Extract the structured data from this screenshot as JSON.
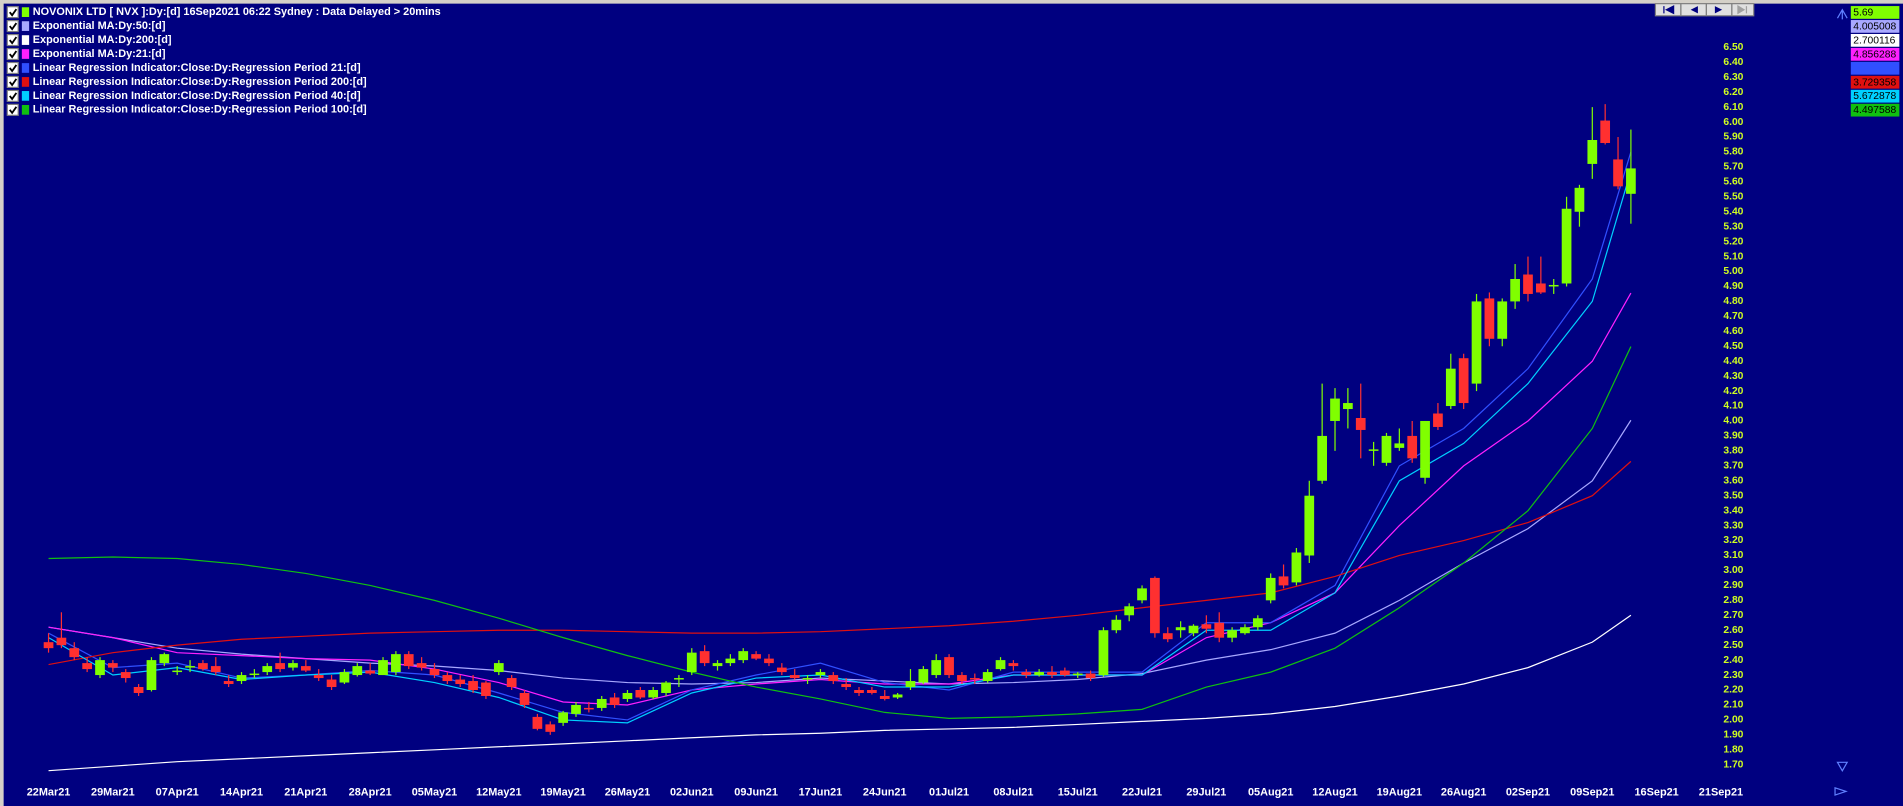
{
  "chart_data": {
    "type": "candlestick",
    "title": "NOVONIX LTD [ NVX ]:Dy:[d]  16Sep2021 06:22 Sydney : Data Delayed > 20mins",
    "up_color": "#80ff00",
    "down_color": "#ff3030",
    "categories": [
      "22Mar21",
      null,
      null,
      null,
      null,
      "29Mar21",
      null,
      null,
      null,
      null,
      "07Apr21",
      null,
      null,
      null,
      null,
      "14Apr21",
      null,
      null,
      null,
      null,
      "21Apr21",
      null,
      null,
      null,
      null,
      "28Apr21",
      null,
      null,
      null,
      null,
      "05May21",
      null,
      null,
      null,
      null,
      "12May21",
      null,
      null,
      null,
      null,
      "19May21",
      null,
      null,
      null,
      null,
      "26May21",
      null,
      null,
      null,
      null,
      "02Jun21",
      null,
      null,
      null,
      null,
      "09Jun21",
      null,
      null,
      null,
      null,
      "17Jun21",
      null,
      null,
      null,
      null,
      "24Jun21",
      null,
      null,
      null,
      null,
      "01Jul21",
      null,
      null,
      null,
      null,
      "08Jul21",
      null,
      null,
      null,
      null,
      "15Jul21",
      null,
      null,
      null,
      null,
      "22Jul21",
      null,
      null,
      null,
      null,
      "29Jul21",
      null,
      null,
      null,
      null,
      "05Aug21",
      null,
      null,
      null,
      null,
      "12Aug21",
      null,
      null,
      null,
      null,
      "19Aug21",
      null,
      null,
      null,
      null,
      "26Aug21",
      null,
      null,
      null,
      null,
      "02Sep21",
      null,
      null,
      null,
      null,
      "09Sep21",
      null,
      null,
      null,
      null,
      "16Sep21",
      null,
      null,
      null,
      null,
      "21Sep21"
    ],
    "open": [
      2.52,
      2.55,
      2.48,
      2.38,
      2.3,
      2.38,
      2.32,
      2.22,
      2.2,
      2.38,
      2.32,
      2.35,
      2.38,
      2.36,
      2.26,
      2.26,
      2.3,
      2.32,
      2.38,
      2.35,
      2.36,
      2.3,
      2.27,
      2.25,
      2.3,
      2.33,
      2.3,
      2.32,
      2.44,
      2.38,
      2.34,
      2.3,
      2.27,
      2.26,
      2.25,
      2.32,
      2.28,
      2.18,
      2.02,
      1.97,
      1.98,
      2.04,
      2.08,
      2.08,
      2.15,
      2.14,
      2.2,
      2.15,
      2.18,
      2.27,
      2.32,
      2.46,
      2.36,
      2.38,
      2.4,
      2.44,
      2.41,
      2.35,
      2.3,
      2.27,
      2.3,
      2.3,
      2.24,
      2.2,
      2.2,
      2.16,
      2.15,
      2.22,
      2.25,
      2.3,
      2.42,
      2.3,
      2.28,
      2.26,
      2.34,
      2.38,
      2.32,
      2.3,
      2.32,
      2.33,
      2.3,
      2.31,
      2.3,
      2.6,
      2.7,
      2.8,
      2.95,
      2.58,
      2.6,
      2.58,
      2.64,
      2.65,
      2.55,
      2.58,
      2.62,
      2.8,
      2.96,
      2.92,
      3.1,
      3.6,
      4.0,
      4.08,
      4.02,
      3.8,
      3.72,
      3.82,
      3.9,
      3.62,
      4.05,
      4.1,
      4.42,
      4.25,
      4.82,
      4.55,
      4.8,
      4.98,
      4.92,
      4.9,
      4.92,
      5.4,
      5.72,
      6.01,
      5.75,
      5.52,
      null,
      null,
      null,
      null,
      null,
      null,
      null
    ],
    "high": [
      2.58,
      2.72,
      2.52,
      2.42,
      2.42,
      2.4,
      2.34,
      2.24,
      2.42,
      2.45,
      2.36,
      2.4,
      2.4,
      2.42,
      2.3,
      2.32,
      2.34,
      2.38,
      2.45,
      2.4,
      2.4,
      2.34,
      2.3,
      2.34,
      2.38,
      2.38,
      2.42,
      2.46,
      2.46,
      2.42,
      2.38,
      2.32,
      2.3,
      2.3,
      2.26,
      2.4,
      2.3,
      2.2,
      2.04,
      1.99,
      2.06,
      2.12,
      2.12,
      2.16,
      2.18,
      2.2,
      2.22,
      2.22,
      2.26,
      2.3,
      2.48,
      2.5,
      2.4,
      2.44,
      2.48,
      2.46,
      2.44,
      2.38,
      2.34,
      2.3,
      2.34,
      2.32,
      2.28,
      2.22,
      2.22,
      2.2,
      2.18,
      2.34,
      2.36,
      2.44,
      2.44,
      2.32,
      2.31,
      2.34,
      2.42,
      2.4,
      2.34,
      2.34,
      2.36,
      2.35,
      2.32,
      2.33,
      2.62,
      2.7,
      2.78,
      2.9,
      2.96,
      2.62,
      2.66,
      2.64,
      2.7,
      2.72,
      2.62,
      2.64,
      2.7,
      2.98,
      3.04,
      3.15,
      3.6,
      4.25,
      4.22,
      4.22,
      4.25,
      3.86,
      3.92,
      3.95,
      4.0,
      4.0,
      4.12,
      4.45,
      4.45,
      4.85,
      4.86,
      4.82,
      5.05,
      5.1,
      5.1,
      4.95,
      5.5,
      5.58,
      6.1,
      6.12,
      5.9,
      5.95,
      null,
      null,
      null,
      null,
      null,
      null,
      null
    ],
    "low": [
      2.45,
      2.48,
      2.4,
      2.32,
      2.28,
      2.32,
      2.25,
      2.16,
      2.19,
      2.36,
      2.3,
      2.32,
      2.33,
      2.3,
      2.22,
      2.24,
      2.28,
      2.3,
      2.32,
      2.33,
      2.32,
      2.26,
      2.2,
      2.24,
      2.29,
      2.3,
      2.3,
      2.3,
      2.34,
      2.33,
      2.28,
      2.24,
      2.22,
      2.18,
      2.14,
      2.3,
      2.2,
      2.08,
      1.93,
      1.9,
      1.96,
      2.02,
      2.05,
      2.06,
      2.08,
      2.12,
      2.14,
      2.14,
      2.16,
      2.22,
      2.3,
      2.36,
      2.33,
      2.36,
      2.38,
      2.4,
      2.36,
      2.3,
      2.27,
      2.24,
      2.28,
      2.24,
      2.2,
      2.16,
      2.17,
      2.13,
      2.14,
      2.2,
      2.24,
      2.28,
      2.28,
      2.24,
      2.24,
      2.25,
      2.33,
      2.33,
      2.28,
      2.29,
      2.28,
      2.29,
      2.28,
      2.26,
      2.29,
      2.58,
      2.66,
      2.78,
      2.55,
      2.52,
      2.55,
      2.56,
      2.58,
      2.52,
      2.52,
      2.57,
      2.6,
      2.78,
      2.88,
      2.9,
      3.05,
      3.58,
      3.8,
      3.95,
      3.75,
      3.7,
      3.7,
      3.8,
      3.72,
      3.58,
      3.94,
      4.08,
      4.08,
      4.2,
      4.5,
      4.5,
      4.75,
      4.8,
      4.85,
      4.85,
      4.9,
      5.3,
      5.62,
      5.85,
      5.55,
      5.32,
      null,
      null,
      null,
      null,
      null,
      null,
      null
    ],
    "close": [
      2.48,
      2.5,
      2.42,
      2.34,
      2.4,
      2.35,
      2.28,
      2.18,
      2.4,
      2.44,
      2.33,
      2.36,
      2.34,
      2.32,
      2.24,
      2.3,
      2.31,
      2.36,
      2.34,
      2.38,
      2.33,
      2.28,
      2.22,
      2.32,
      2.36,
      2.31,
      2.4,
      2.44,
      2.36,
      2.35,
      2.3,
      2.26,
      2.24,
      2.2,
      2.16,
      2.38,
      2.22,
      2.1,
      1.94,
      1.92,
      2.05,
      2.1,
      2.07,
      2.14,
      2.1,
      2.18,
      2.15,
      2.2,
      2.25,
      2.28,
      2.45,
      2.38,
      2.38,
      2.41,
      2.46,
      2.41,
      2.38,
      2.32,
      2.28,
      2.28,
      2.32,
      2.26,
      2.22,
      2.18,
      2.18,
      2.14,
      2.17,
      2.26,
      2.34,
      2.4,
      2.3,
      2.26,
      2.27,
      2.32,
      2.4,
      2.36,
      2.3,
      2.32,
      2.3,
      2.3,
      2.31,
      2.28,
      2.6,
      2.67,
      2.76,
      2.88,
      2.58,
      2.54,
      2.62,
      2.63,
      2.61,
      2.55,
      2.6,
      2.62,
      2.68,
      2.95,
      2.9,
      3.12,
      3.5,
      3.9,
      4.15,
      4.12,
      3.94,
      3.81,
      3.9,
      3.85,
      3.75,
      4.0,
      3.96,
      4.35,
      4.12,
      4.8,
      4.55,
      4.8,
      4.95,
      4.85,
      4.86,
      4.91,
      5.42,
      5.56,
      5.88,
      5.86,
      5.57,
      5.69,
      null,
      null,
      null,
      null,
      null,
      null,
      null
    ],
    "overlays": [
      {
        "name": "Exponential MA:Dy:50:[d]",
        "color": "#a8a8ff",
        "x": [
          0,
          5,
          10,
          15,
          20,
          25,
          30,
          35,
          40,
          45,
          50,
          55,
          60,
          65,
          70,
          75,
          80,
          85,
          90,
          95,
          100,
          105,
          110,
          115,
          120,
          123
        ],
        "values": [
          2.62,
          2.55,
          2.48,
          2.44,
          2.41,
          2.38,
          2.36,
          2.33,
          2.28,
          2.25,
          2.24,
          2.25,
          2.28,
          2.26,
          2.24,
          2.25,
          2.27,
          2.31,
          2.4,
          2.47,
          2.58,
          2.8,
          3.05,
          3.28,
          3.6,
          4.005008
        ]
      },
      {
        "name": "Exponential MA:Dy:200:[d]",
        "color": "#ffffff",
        "x": [
          0,
          5,
          10,
          15,
          20,
          25,
          30,
          35,
          40,
          45,
          50,
          55,
          60,
          65,
          70,
          75,
          80,
          85,
          90,
          95,
          100,
          105,
          110,
          115,
          120,
          123
        ],
        "values": [
          1.66,
          1.69,
          1.72,
          1.74,
          1.76,
          1.78,
          1.8,
          1.82,
          1.84,
          1.86,
          1.88,
          1.9,
          1.91,
          1.93,
          1.94,
          1.95,
          1.97,
          1.99,
          2.01,
          2.04,
          2.09,
          2.16,
          2.24,
          2.35,
          2.52,
          2.700116
        ]
      },
      {
        "name": "Exponential MA:Dy:21:[d]",
        "color": "#ff20ff",
        "x": [
          0,
          5,
          10,
          15,
          20,
          25,
          30,
          35,
          40,
          45,
          50,
          55,
          60,
          65,
          70,
          75,
          80,
          85,
          90,
          95,
          100,
          105,
          110,
          115,
          120,
          123
        ],
        "values": [
          2.62,
          2.55,
          2.45,
          2.43,
          2.41,
          2.4,
          2.34,
          2.25,
          2.12,
          2.1,
          2.2,
          2.24,
          2.27,
          2.24,
          2.24,
          2.3,
          2.3,
          2.3,
          2.55,
          2.65,
          2.85,
          3.3,
          3.7,
          4.0,
          4.4,
          4.856288
        ]
      },
      {
        "name": "Linear Regression Indicator:Close:Dy:Regression Period 21:[d]",
        "color": "#3050ff",
        "x": [
          0,
          5,
          10,
          15,
          20,
          25,
          30,
          35,
          40,
          45,
          50,
          55,
          60,
          65,
          70,
          75,
          80,
          85,
          90,
          95,
          100,
          105,
          110,
          115,
          120,
          123
        ],
        "values": [
          2.58,
          2.35,
          2.38,
          2.28,
          2.3,
          2.33,
          2.3,
          2.18,
          2.05,
          2.0,
          2.2,
          2.3,
          2.38,
          2.25,
          2.2,
          2.32,
          2.32,
          2.32,
          2.65,
          2.65,
          2.9,
          3.7,
          3.95,
          4.35,
          4.95,
          5.8
        ]
      },
      {
        "name": "Linear Regression Indicator:Close:Dy:Regression Period 200:[d]",
        "color": "#e01010",
        "x": [
          0,
          5,
          10,
          15,
          20,
          25,
          30,
          35,
          40,
          45,
          50,
          55,
          60,
          65,
          70,
          75,
          80,
          85,
          90,
          95,
          100,
          105,
          110,
          115,
          120,
          123
        ],
        "values": [
          2.37,
          2.45,
          2.5,
          2.54,
          2.56,
          2.58,
          2.59,
          2.6,
          2.6,
          2.59,
          2.58,
          2.58,
          2.59,
          2.61,
          2.63,
          2.66,
          2.7,
          2.75,
          2.8,
          2.85,
          2.96,
          3.1,
          3.2,
          3.32,
          3.5,
          3.729358
        ]
      },
      {
        "name": "Linear Regression Indicator:Close:Dy:Regression Period 40:[d]",
        "color": "#00d0ff",
        "x": [
          0,
          5,
          10,
          15,
          20,
          25,
          30,
          35,
          40,
          45,
          50,
          55,
          60,
          65,
          70,
          75,
          80,
          85,
          90,
          95,
          100,
          105,
          110,
          115,
          120,
          123
        ],
        "values": [
          2.55,
          2.3,
          2.35,
          2.27,
          2.3,
          2.32,
          2.25,
          2.15,
          2.0,
          1.98,
          2.18,
          2.28,
          2.3,
          2.22,
          2.22,
          2.3,
          2.3,
          2.3,
          2.6,
          2.6,
          2.85,
          3.6,
          3.85,
          4.25,
          4.8,
          5.672878
        ]
      },
      {
        "name": "Linear Regression Indicator:Close:Dy:Regression Period 100:[d]",
        "color": "#10c010",
        "x": [
          0,
          5,
          10,
          15,
          20,
          25,
          30,
          35,
          40,
          45,
          50,
          55,
          60,
          65,
          70,
          75,
          80,
          85,
          90,
          95,
          100,
          105,
          110,
          115,
          120,
          123
        ],
        "values": [
          3.08,
          3.09,
          3.08,
          3.04,
          2.98,
          2.9,
          2.8,
          2.68,
          2.55,
          2.43,
          2.32,
          2.22,
          2.14,
          2.05,
          2.01,
          2.02,
          2.04,
          2.07,
          2.22,
          2.32,
          2.48,
          2.75,
          3.05,
          3.4,
          3.95,
          4.497588
        ]
      }
    ],
    "ylim": [
      1.7,
      6.5
    ],
    "yticks": [
      {
        "value": 1.7,
        "label": "1.70"
      },
      {
        "value": 1.8,
        "label": "1.80"
      },
      {
        "value": 1.9,
        "label": "1.90"
      },
      {
        "value": 2.0,
        "label": "2.00"
      },
      {
        "value": 2.1,
        "label": "2.10"
      },
      {
        "value": 2.2,
        "label": "2.20"
      },
      {
        "value": 2.3,
        "label": "2.30"
      },
      {
        "value": 2.4,
        "label": "2.40"
      },
      {
        "value": 2.5,
        "label": "2.50"
      },
      {
        "value": 2.6,
        "label": "2.60"
      },
      {
        "value": 2.7,
        "label": "2.70"
      },
      {
        "value": 2.8,
        "label": "2.80"
      },
      {
        "value": 2.9,
        "label": "2.90"
      },
      {
        "value": 3.0,
        "label": "3.00"
      },
      {
        "value": 3.1,
        "label": "3.10"
      },
      {
        "value": 3.2,
        "label": "3.20"
      },
      {
        "value": 3.3,
        "label": "3.30"
      },
      {
        "value": 3.4,
        "label": "3.40"
      },
      {
        "value": 3.5,
        "label": "3.50"
      },
      {
        "value": 3.6,
        "label": "3.60"
      },
      {
        "value": 3.7,
        "label": "3.70"
      },
      {
        "value": 3.8,
        "label": "3.80"
      },
      {
        "value": 3.9,
        "label": "3.90"
      },
      {
        "value": 4.0,
        "label": "4.00"
      },
      {
        "value": 4.1,
        "label": "4.10"
      },
      {
        "value": 4.2,
        "label": "4.20"
      },
      {
        "value": 4.3,
        "label": "4.30"
      },
      {
        "value": 4.4,
        "label": "4.40"
      },
      {
        "value": 4.5,
        "label": "4.50"
      },
      {
        "value": 4.6,
        "label": "4.60"
      },
      {
        "value": 4.7,
        "label": "4.70"
      },
      {
        "value": 4.8,
        "label": "4.80"
      },
      {
        "value": 4.9,
        "label": "4.90"
      },
      {
        "value": 5.0,
        "label": "5.00"
      },
      {
        "value": 5.1,
        "label": "5.10"
      },
      {
        "value": 5.2,
        "label": "5.20"
      },
      {
        "value": 5.3,
        "label": "5.30"
      },
      {
        "value": 5.4,
        "label": "5.40"
      },
      {
        "value": 5.5,
        "label": "5.50"
      },
      {
        "value": 5.6,
        "label": "5.60"
      },
      {
        "value": 5.7,
        "label": "5.70"
      },
      {
        "value": 5.8,
        "label": "5.80"
      },
      {
        "value": 5.9,
        "label": "5.90"
      },
      {
        "value": 6.0,
        "label": "6.00"
      },
      {
        "value": 6.1,
        "label": "6.10"
      },
      {
        "value": 6.2,
        "label": "6.20"
      },
      {
        "value": 6.3,
        "label": "6.30"
      },
      {
        "value": 6.4,
        "label": "6.40"
      },
      {
        "value": 6.5,
        "label": "6.50"
      }
    ],
    "grid": false
  }
}
